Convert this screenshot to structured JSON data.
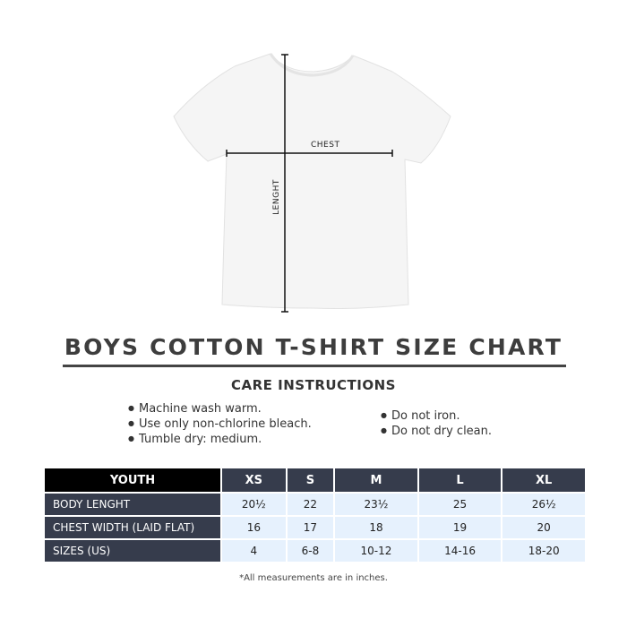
{
  "diagram": {
    "chest_label": "CHEST",
    "length_label": "LENGHT"
  },
  "title": "BOYS COTTON T-SHIRT SIZE CHART",
  "care": {
    "heading": "CARE INSTRUCTIONS",
    "left": [
      "Machine wash warm.",
      "Use only non-chlorine bleach.",
      "Tumble dry: medium."
    ],
    "right": [
      "Do not iron.",
      "Do not dry clean."
    ]
  },
  "table": {
    "header": [
      "YOUTH",
      "XS",
      "S",
      "M",
      "L",
      "XL"
    ],
    "rows": [
      {
        "label": "BODY LENGHT",
        "values": [
          "20½",
          "22",
          "23½",
          "25",
          "26½"
        ]
      },
      {
        "label": "CHEST WIDTH (LAID FLAT)",
        "values": [
          "16",
          "17",
          "18",
          "19",
          "20"
        ]
      },
      {
        "label": "SIZES (US)",
        "values": [
          "4",
          "6-8",
          "10-12",
          "14-16",
          "18-20"
        ]
      }
    ]
  },
  "note": "*All measurements are in inches.",
  "colors": {
    "header_bg": "#363c4c",
    "youth_bg": "#000000",
    "cell_bg": "#e6f1fd"
  }
}
